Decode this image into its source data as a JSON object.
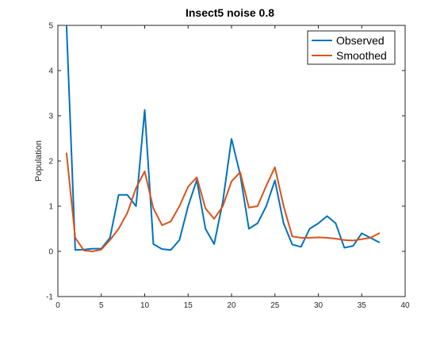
{
  "chart_data": {
    "type": "line",
    "title": "Insect5 noise 0.8",
    "xlabel": "",
    "ylabel": "Population",
    "xlim": [
      0,
      40
    ],
    "ylim": [
      -1,
      5
    ],
    "xticks": [
      0,
      5,
      10,
      15,
      20,
      25,
      30,
      35,
      40
    ],
    "yticks": [
      -1,
      0,
      1,
      2,
      3,
      4,
      5
    ],
    "grid": false,
    "legend_position": "top-right",
    "x": [
      1,
      2,
      3,
      4,
      5,
      6,
      7,
      8,
      9,
      10,
      11,
      12,
      13,
      14,
      15,
      16,
      17,
      18,
      19,
      20,
      21,
      22,
      23,
      24,
      25,
      26,
      27,
      28,
      29,
      30,
      31,
      32,
      33,
      34,
      35,
      36,
      37
    ],
    "series": [
      {
        "name": "Observed",
        "color": "#0072BD",
        "values": [
          4.98,
          0.03,
          0.04,
          0.06,
          0.06,
          0.3,
          1.25,
          1.25,
          1.0,
          3.13,
          0.16,
          0.05,
          0.03,
          0.25,
          1.0,
          1.58,
          0.5,
          0.16,
          1.1,
          2.49,
          1.7,
          0.5,
          0.62,
          1.0,
          1.57,
          0.62,
          0.15,
          0.1,
          0.5,
          0.62,
          0.78,
          0.62,
          0.08,
          0.12,
          0.4,
          0.3,
          0.2
        ]
      },
      {
        "name": "Smoothed",
        "color": "#D95319",
        "values": [
          2.17,
          0.3,
          0.02,
          0.0,
          0.04,
          0.25,
          0.5,
          0.85,
          1.4,
          1.77,
          0.95,
          0.58,
          0.66,
          1.0,
          1.43,
          1.64,
          0.95,
          0.72,
          1.0,
          1.55,
          1.75,
          0.97,
          1.0,
          1.45,
          1.86,
          1.0,
          0.33,
          0.3,
          0.3,
          0.31,
          0.3,
          0.28,
          0.25,
          0.24,
          0.27,
          0.3,
          0.4
        ]
      }
    ]
  }
}
